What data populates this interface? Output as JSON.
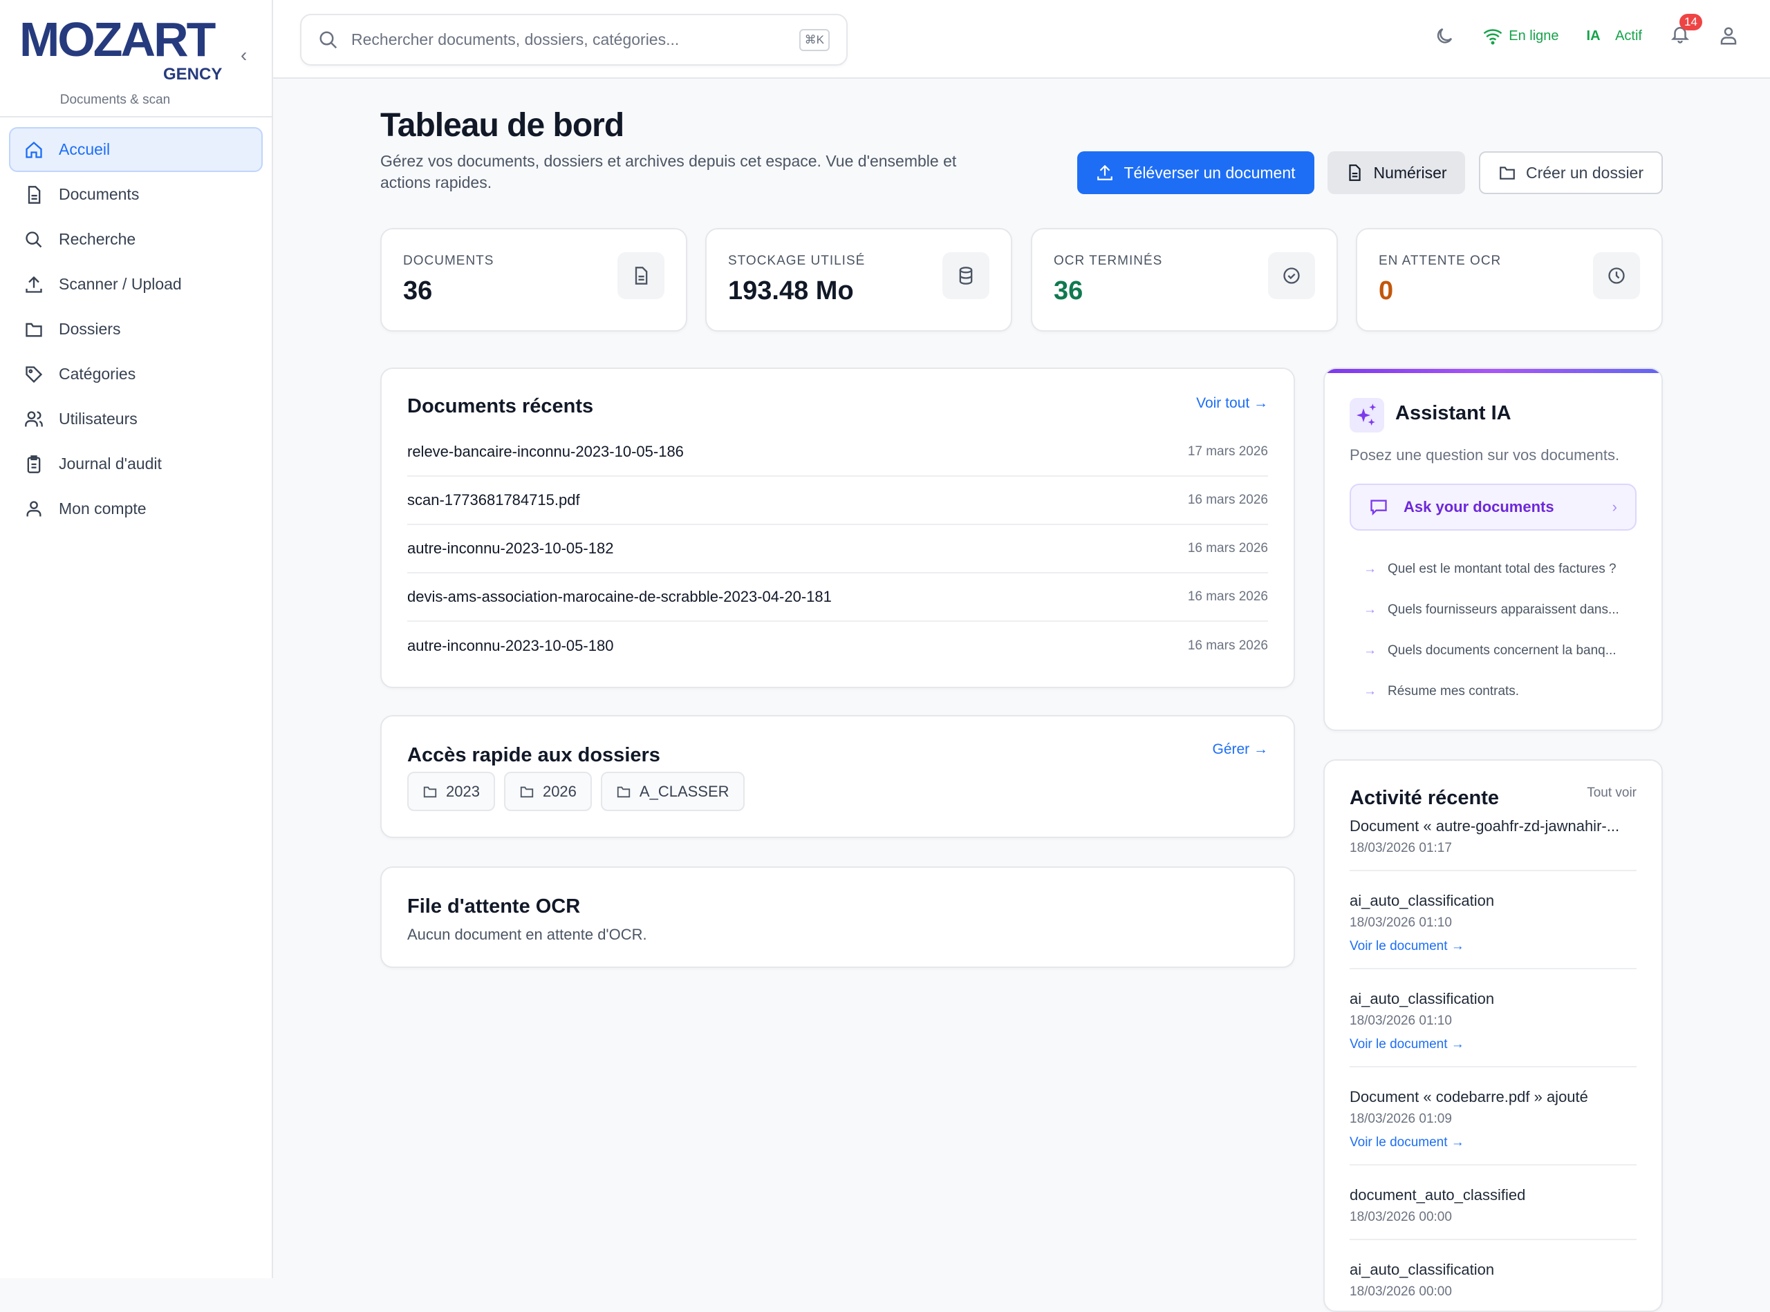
{
  "brand": {
    "logo": "MOZART",
    "logo_sub": "GENCY",
    "tagline": "Documents & scan"
  },
  "sidebar": {
    "items": [
      {
        "label": "Accueil",
        "icon": "home-icon",
        "active": true
      },
      {
        "label": "Documents",
        "icon": "file-icon"
      },
      {
        "label": "Recherche",
        "icon": "search-icon"
      },
      {
        "label": "Scanner / Upload",
        "icon": "upload-icon"
      },
      {
        "label": "Dossiers",
        "icon": "folder-icon"
      },
      {
        "label": "Catégories",
        "icon": "tag-icon"
      },
      {
        "label": "Utilisateurs",
        "icon": "users-icon"
      },
      {
        "label": "Journal d'audit",
        "icon": "clipboard-icon"
      },
      {
        "label": "Mon compte",
        "icon": "user-icon"
      }
    ]
  },
  "header": {
    "search_placeholder": "Rechercher documents, dossiers, catégories...",
    "shortcut": "⌘K",
    "status": "En ligne",
    "ai_label": "IA",
    "ai_status": "Actif",
    "notifications": "14",
    "status_color": "#16a34a"
  },
  "page": {
    "title": "Tableau de bord",
    "subtitle": "Gérez vos documents, dossiers et archives depuis cet espace. Vue d'ensemble et actions rapides.",
    "actions": {
      "upload": "Téléverser un document",
      "scan": "Numériser",
      "create_folder": "Créer un dossier"
    }
  },
  "stats": [
    {
      "label": "DOCUMENTS",
      "value": "36",
      "color": "#111827"
    },
    {
      "label": "STOCKAGE UTILISÉ",
      "value": "193.48 Mo",
      "color": "#111827"
    },
    {
      "label": "OCR TERMINÉS",
      "value": "36",
      "color": "#0f7a4f"
    },
    {
      "label": "EN ATTENTE OCR",
      "value": "0",
      "color": "#c2570c"
    }
  ],
  "recent": {
    "title": "Documents récents",
    "link": "Voir tout →",
    "rows": [
      {
        "name": "releve-bancaire-inconnu-2023-10-05-186",
        "date": "17 mars 2026"
      },
      {
        "name": "scan-1773681784715.pdf",
        "date": "16 mars 2026"
      },
      {
        "name": "autre-inconnu-2023-10-05-182",
        "date": "16 mars 2026"
      },
      {
        "name": "devis-ams-association-marocaine-de-scrabble-2023-04-20-181",
        "date": "16 mars 2026"
      },
      {
        "name": "autre-inconnu-2023-10-05-180",
        "date": "16 mars 2026"
      }
    ]
  },
  "quick": {
    "title": "Accès rapide aux dossiers",
    "link": "Gérer →",
    "folders": [
      "2023",
      "2026",
      "A_CLASSER"
    ]
  },
  "ocr": {
    "title": "File d'attente OCR",
    "empty": "Aucun document en attente d'OCR."
  },
  "assistant": {
    "title": "Assistant IA",
    "subtitle": "Posez une question sur vos documents.",
    "ask": "Ask your documents",
    "suggestions": [
      "Quel est le montant total des factures ?",
      "Quels fournisseurs apparaissent dans...",
      "Quels documents concernent la banq...",
      "Résume mes contrats."
    ]
  },
  "activity": {
    "title": "Activité récente",
    "link": "Tout voir",
    "items": [
      {
        "title": "Document « autre-goahfr-zd-jawnahir-...",
        "time": "18/03/2026 01:17"
      },
      {
        "title": "ai_auto_classification",
        "time": "18/03/2026 01:10",
        "link": "Voir le document →"
      },
      {
        "title": "ai_auto_classification",
        "time": "18/03/2026 01:10",
        "link": "Voir le document →"
      },
      {
        "title": "Document « codebarre.pdf » ajouté",
        "time": "18/03/2026 01:09",
        "link": "Voir le document →"
      },
      {
        "title": "document_auto_classified",
        "time": "18/03/2026 00:00"
      },
      {
        "title": "ai_auto_classification",
        "time": "18/03/2026 00:00"
      }
    ]
  }
}
